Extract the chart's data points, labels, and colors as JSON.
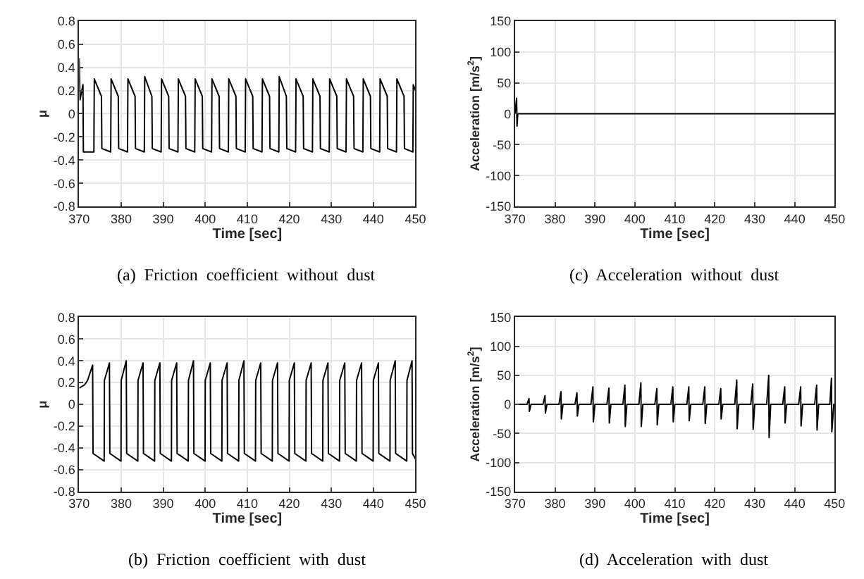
{
  "chart_data": [
    {
      "type": "line",
      "xlabel": "Time [sec]",
      "ylabel": "μ",
      "annotations": [
        "(a)  Friction  coefficient  without  dust"
      ],
      "xlim": [
        370,
        450
      ],
      "xticks": [
        370,
        380,
        390,
        400,
        410,
        420,
        430,
        440,
        450
      ],
      "ylim": [
        -0.8,
        0.8
      ],
      "yticks": [
        -0.8,
        -0.6,
        -0.4,
        -0.2,
        0,
        0.2,
        0.4,
        0.6,
        0.8
      ],
      "grid": true,
      "series": [
        {
          "color": "#000000",
          "x": [
            370,
            370.2,
            370.9,
            371,
            373.5,
            373.6,
            375.3,
            375.4,
            377.5,
            377.6,
            379.3,
            379.4,
            381.5,
            381.6,
            383.3,
            383.4,
            385.5,
            385.6,
            387.3,
            387.4,
            389.5,
            389.6,
            391.3,
            391.4,
            393.5,
            393.6,
            395.3,
            395.4,
            397.5,
            397.6,
            399.3,
            399.4,
            401.5,
            401.6,
            403.3,
            403.4,
            405.5,
            405.6,
            407.3,
            407.4,
            409.5,
            409.6,
            411.3,
            411.4,
            413.5,
            413.6,
            415.3,
            415.4,
            417.5,
            417.6,
            419.3,
            419.4,
            421.5,
            421.6,
            423.3,
            423.4,
            425.5,
            425.6,
            427.3,
            427.4,
            429.5,
            429.6,
            431.3,
            431.4,
            433.5,
            433.6,
            435.3,
            435.4,
            437.5,
            437.6,
            439.3,
            439.4,
            441.5,
            441.6,
            443.3,
            443.4,
            445.5,
            445.6,
            447.3,
            447.4,
            449.4,
            449.5,
            450
          ],
          "values": [
            0.48,
            0.12,
            0.25,
            -0.33,
            -0.33,
            0.3,
            0.15,
            -0.3,
            -0.33,
            0.3,
            0.15,
            -0.3,
            -0.33,
            0.3,
            0.15,
            -0.3,
            -0.33,
            0.32,
            0.15,
            -0.3,
            -0.33,
            0.3,
            0.15,
            -0.3,
            -0.33,
            0.3,
            0.15,
            -0.3,
            -0.33,
            0.3,
            0.15,
            -0.3,
            -0.33,
            0.3,
            0.15,
            -0.3,
            -0.33,
            0.3,
            0.15,
            -0.3,
            -0.33,
            0.3,
            0.15,
            -0.3,
            -0.33,
            0.3,
            0.15,
            -0.3,
            -0.33,
            0.32,
            0.15,
            -0.3,
            -0.33,
            0.3,
            0.15,
            -0.3,
            -0.33,
            0.3,
            0.15,
            -0.3,
            -0.33,
            0.3,
            0.15,
            -0.3,
            -0.33,
            0.3,
            0.15,
            -0.3,
            -0.33,
            0.3,
            0.15,
            -0.3,
            -0.33,
            0.3,
            0.15,
            -0.3,
            -0.33,
            0.3,
            0.15,
            -0.3,
            -0.33,
            0.25,
            0.2
          ]
        }
      ]
    },
    {
      "type": "line",
      "xlabel": "Time [sec]",
      "ylabel": "Acceleration [m/s$^{2}$]",
      "annotations": [
        "(c)  Acceleration  without  dust"
      ],
      "xlim": [
        370,
        450
      ],
      "xticks": [
        370,
        380,
        390,
        400,
        410,
        420,
        430,
        440,
        450
      ],
      "ylim": [
        -150,
        150
      ],
      "yticks": [
        -150,
        -100,
        -50,
        0,
        50,
        100,
        150
      ],
      "grid": true,
      "series": [
        {
          "color": "#000000",
          "x": [
            370,
            370.4,
            370.5,
            370.7,
            450
          ],
          "values": [
            0,
            25,
            -20,
            0,
            0
          ]
        }
      ]
    },
    {
      "type": "line",
      "xlabel": "Time [sec]",
      "ylabel": "μ",
      "annotations": [
        "(b)  Friction  coefficient  with  dust"
      ],
      "xlim": [
        370,
        450
      ],
      "xticks": [
        370,
        380,
        390,
        400,
        410,
        420,
        430,
        440,
        450
      ],
      "ylim": [
        -0.8,
        0.8
      ],
      "yticks": [
        -0.8,
        -0.6,
        -0.4,
        -0.2,
        0,
        0.2,
        0.4,
        0.6,
        0.8
      ],
      "grid": true,
      "series": [
        {
          "color": "#000000",
          "x": [
            370,
            371.3,
            372,
            373.2,
            373.3,
            375.95,
            376,
            377.2,
            377.3,
            379.95,
            380,
            381.2,
            381.3,
            383.95,
            384,
            385.2,
            385.3,
            387.95,
            388,
            389.2,
            389.3,
            391.95,
            392,
            393.2,
            393.3,
            395.95,
            396,
            397.2,
            397.3,
            399.95,
            400,
            401.2,
            401.3,
            403.95,
            404,
            405.2,
            405.3,
            407.95,
            408,
            409.2,
            409.3,
            411.95,
            412,
            413.2,
            413.3,
            415.95,
            416,
            417.2,
            417.3,
            419.95,
            420,
            421.2,
            421.3,
            423.95,
            424,
            425.2,
            425.3,
            427.95,
            428,
            429.2,
            429.3,
            431.95,
            432,
            433.2,
            433.3,
            435.95,
            436,
            437.2,
            437.3,
            439.95,
            440,
            441.2,
            441.3,
            443.95,
            444,
            445.2,
            445.3,
            447.95,
            448,
            449.2,
            449.3,
            450
          ],
          "values": [
            0.15,
            0.18,
            0.22,
            0.36,
            -0.45,
            -0.52,
            0.22,
            0.38,
            -0.45,
            -0.52,
            0.22,
            0.4,
            -0.45,
            -0.52,
            0.22,
            0.38,
            -0.45,
            -0.52,
            0.22,
            0.38,
            -0.45,
            -0.52,
            0.22,
            0.38,
            -0.45,
            -0.52,
            0.22,
            0.4,
            -0.45,
            -0.52,
            0.22,
            0.38,
            -0.45,
            -0.52,
            0.22,
            0.38,
            -0.45,
            -0.52,
            0.22,
            0.4,
            -0.45,
            -0.52,
            0.22,
            0.38,
            -0.45,
            -0.52,
            0.22,
            0.38,
            -0.45,
            -0.52,
            0.22,
            0.38,
            -0.45,
            -0.52,
            0.22,
            0.38,
            -0.45,
            -0.52,
            0.22,
            0.38,
            -0.45,
            -0.52,
            0.22,
            0.38,
            -0.45,
            -0.52,
            0.22,
            0.38,
            -0.45,
            -0.52,
            0.22,
            0.38,
            -0.45,
            -0.52,
            0.22,
            0.4,
            -0.45,
            -0.52,
            0.22,
            0.4,
            -0.45,
            -0.5
          ]
        }
      ]
    },
    {
      "type": "line",
      "xlabel": "Time [sec]",
      "ylabel": "Acceleration [m/s$^{2}$]",
      "annotations": [
        "(d)  Acceleration  with  dust"
      ],
      "xlim": [
        370,
        450
      ],
      "xticks": [
        370,
        380,
        390,
        400,
        410,
        420,
        430,
        440,
        450
      ],
      "ylim": [
        -150,
        150
      ],
      "yticks": [
        -150,
        -100,
        -50,
        0,
        50,
        100,
        150
      ],
      "grid": true,
      "series": [
        {
          "color": "#000000",
          "x": [
            370,
            373,
            373.5,
            373.6,
            374,
            377,
            377.5,
            377.6,
            378,
            381,
            381.5,
            381.6,
            382,
            385,
            385.5,
            385.6,
            386,
            389,
            389.5,
            389.6,
            390,
            393,
            393.5,
            393.6,
            394,
            397,
            397.5,
            397.6,
            398,
            401,
            401.5,
            401.6,
            402,
            405,
            405.5,
            405.6,
            406,
            409,
            409.5,
            409.6,
            410,
            413,
            413.5,
            413.6,
            414,
            417,
            417.5,
            417.6,
            418,
            421,
            421.5,
            421.6,
            422,
            425,
            425.5,
            425.6,
            426,
            429,
            429.5,
            429.6,
            430,
            433,
            433.5,
            433.6,
            434,
            437,
            437.5,
            437.6,
            438,
            441,
            441.5,
            441.6,
            442,
            445,
            445.5,
            445.6,
            446,
            448.8,
            449.2,
            449.3,
            449.8,
            450
          ],
          "values": [
            0,
            0,
            10,
            -12,
            0,
            0,
            15,
            -15,
            0,
            0,
            22,
            -25,
            0,
            0,
            20,
            -20,
            0,
            0,
            30,
            -30,
            0,
            0,
            28,
            -32,
            0,
            0,
            33,
            -38,
            0,
            0,
            37,
            -38,
            0,
            0,
            27,
            -35,
            0,
            0,
            30,
            -30,
            0,
            0,
            30,
            -28,
            0,
            0,
            30,
            -33,
            0,
            0,
            27,
            -25,
            0,
            0,
            42,
            -42,
            0,
            0,
            35,
            -43,
            0,
            0,
            50,
            -57,
            0,
            0,
            30,
            -32,
            0,
            0,
            30,
            -37,
            0,
            0,
            33,
            -44,
            0,
            0,
            45,
            -47,
            0,
            0
          ]
        }
      ]
    }
  ]
}
